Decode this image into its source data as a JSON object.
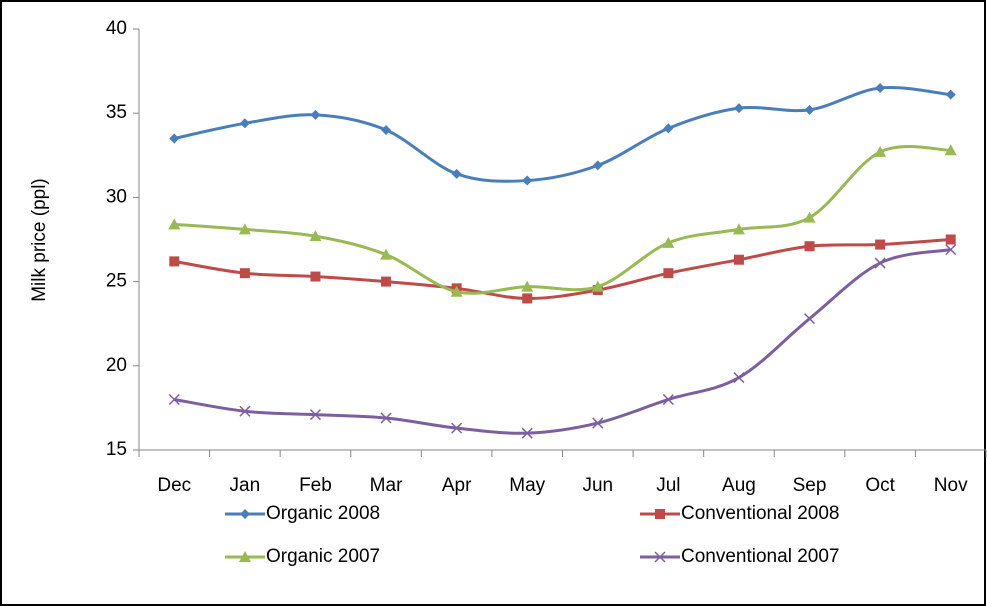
{
  "chart_data": {
    "type": "line",
    "y_label": "Milk price (ppl)",
    "categories": [
      "Dec",
      "Jan",
      "Feb",
      "Mar",
      "Apr",
      "May",
      "Jun",
      "Jul",
      "Aug",
      "Sep",
      "Oct",
      "Nov"
    ],
    "series": [
      {
        "name": "Organic 2008",
        "color": "#4a7ebb",
        "marker": "diamond",
        "values": [
          33.5,
          34.4,
          34.9,
          34.0,
          31.4,
          31.0,
          31.9,
          34.1,
          35.3,
          35.2,
          36.5,
          36.1
        ]
      },
      {
        "name": "Conventional 2008",
        "color": "#be4b48",
        "marker": "square",
        "values": [
          26.2,
          25.5,
          25.3,
          25.0,
          24.6,
          24.0,
          24.5,
          25.5,
          26.3,
          27.1,
          27.2,
          27.5
        ]
      },
      {
        "name": "Organic 2007",
        "color": "#98b954",
        "marker": "triangle",
        "values": [
          28.4,
          28.1,
          27.7,
          26.6,
          24.4,
          24.7,
          24.7,
          27.3,
          28.1,
          28.8,
          32.7,
          32.8
        ]
      },
      {
        "name": "Conventional 2007",
        "color": "#7d5fa0",
        "marker": "x",
        "values": [
          18.0,
          17.3,
          17.1,
          16.9,
          16.3,
          16.0,
          16.6,
          18.0,
          19.3,
          22.8,
          26.1,
          26.9
        ]
      }
    ],
    "ylim": [
      15,
      40
    ],
    "yticks": [
      15,
      20,
      25,
      30,
      35,
      40
    ],
    "grid": false,
    "smooth": true
  }
}
